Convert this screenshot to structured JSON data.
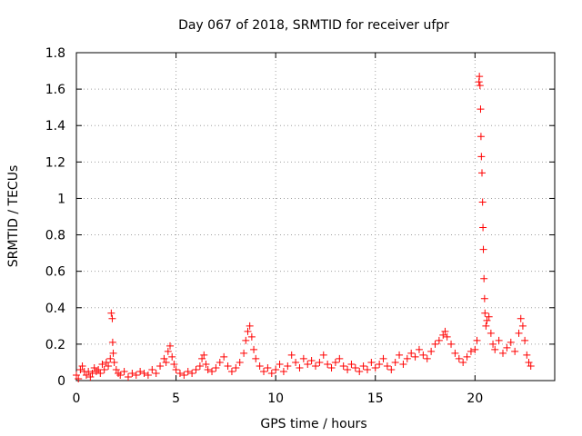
{
  "chart_data": {
    "type": "scatter",
    "title": "Day 067 of 2018, SRMTID for receiver ufpr",
    "xlabel": "GPS time / hours",
    "ylabel": "SRMTID / TECUs",
    "xlim": [
      0,
      24
    ],
    "ylim": [
      0,
      1.8
    ],
    "xticks": [
      "0",
      "5",
      "10",
      "15",
      "20"
    ],
    "yticks": [
      "0",
      "0.2",
      "0.4",
      "0.6",
      "0.8",
      "1",
      "1.2",
      "1.4",
      "1.6",
      "1.8"
    ],
    "grid": true,
    "marker": "+",
    "color": "#ff0000",
    "series": [
      {
        "name": "SRMTID",
        "points": [
          [
            0.0,
            0.03
          ],
          [
            0.1,
            0.01
          ],
          [
            0.2,
            0.06
          ],
          [
            0.3,
            0.08
          ],
          [
            0.4,
            0.05
          ],
          [
            0.5,
            0.03
          ],
          [
            0.6,
            0.05
          ],
          [
            0.7,
            0.02
          ],
          [
            0.8,
            0.04
          ],
          [
            0.9,
            0.07
          ],
          [
            1.0,
            0.05
          ],
          [
            1.1,
            0.06
          ],
          [
            1.2,
            0.04
          ],
          [
            1.3,
            0.09
          ],
          [
            1.4,
            0.06
          ],
          [
            1.5,
            0.1
          ],
          [
            1.6,
            0.08
          ],
          [
            1.7,
            0.12
          ],
          [
            1.75,
            0.37
          ],
          [
            1.8,
            0.34
          ],
          [
            1.82,
            0.21
          ],
          [
            1.85,
            0.15
          ],
          [
            1.9,
            0.1
          ],
          [
            2.0,
            0.06
          ],
          [
            2.1,
            0.04
          ],
          [
            2.2,
            0.03
          ],
          [
            2.4,
            0.05
          ],
          [
            2.6,
            0.02
          ],
          [
            2.8,
            0.04
          ],
          [
            3.0,
            0.03
          ],
          [
            3.2,
            0.05
          ],
          [
            3.4,
            0.04
          ],
          [
            3.6,
            0.03
          ],
          [
            3.8,
            0.06
          ],
          [
            4.0,
            0.04
          ],
          [
            4.2,
            0.08
          ],
          [
            4.4,
            0.12
          ],
          [
            4.5,
            0.1
          ],
          [
            4.6,
            0.16
          ],
          [
            4.7,
            0.19
          ],
          [
            4.8,
            0.13
          ],
          [
            4.9,
            0.09
          ],
          [
            5.0,
            0.06
          ],
          [
            5.2,
            0.04
          ],
          [
            5.4,
            0.03
          ],
          [
            5.6,
            0.05
          ],
          [
            5.8,
            0.04
          ],
          [
            6.0,
            0.06
          ],
          [
            6.2,
            0.08
          ],
          [
            6.3,
            0.12
          ],
          [
            6.4,
            0.14
          ],
          [
            6.5,
            0.09
          ],
          [
            6.6,
            0.06
          ],
          [
            6.8,
            0.05
          ],
          [
            7.0,
            0.07
          ],
          [
            7.2,
            0.1
          ],
          [
            7.4,
            0.13
          ],
          [
            7.6,
            0.08
          ],
          [
            7.8,
            0.05
          ],
          [
            8.0,
            0.07
          ],
          [
            8.2,
            0.1
          ],
          [
            8.4,
            0.15
          ],
          [
            8.5,
            0.22
          ],
          [
            8.6,
            0.27
          ],
          [
            8.7,
            0.3
          ],
          [
            8.8,
            0.24
          ],
          [
            8.9,
            0.17
          ],
          [
            9.0,
            0.12
          ],
          [
            9.2,
            0.08
          ],
          [
            9.4,
            0.05
          ],
          [
            9.6,
            0.07
          ],
          [
            9.8,
            0.04
          ],
          [
            10.0,
            0.06
          ],
          [
            10.2,
            0.09
          ],
          [
            10.4,
            0.05
          ],
          [
            10.6,
            0.08
          ],
          [
            10.8,
            0.14
          ],
          [
            11.0,
            0.1
          ],
          [
            11.2,
            0.07
          ],
          [
            11.4,
            0.12
          ],
          [
            11.6,
            0.09
          ],
          [
            11.8,
            0.11
          ],
          [
            12.0,
            0.08
          ],
          [
            12.2,
            0.1
          ],
          [
            12.4,
            0.14
          ],
          [
            12.6,
            0.09
          ],
          [
            12.8,
            0.07
          ],
          [
            13.0,
            0.1
          ],
          [
            13.2,
            0.12
          ],
          [
            13.4,
            0.08
          ],
          [
            13.6,
            0.06
          ],
          [
            13.8,
            0.09
          ],
          [
            14.0,
            0.07
          ],
          [
            14.2,
            0.05
          ],
          [
            14.4,
            0.08
          ],
          [
            14.6,
            0.06
          ],
          [
            14.8,
            0.1
          ],
          [
            15.0,
            0.07
          ],
          [
            15.2,
            0.09
          ],
          [
            15.4,
            0.12
          ],
          [
            15.6,
            0.08
          ],
          [
            15.8,
            0.06
          ],
          [
            16.0,
            0.1
          ],
          [
            16.2,
            0.14
          ],
          [
            16.4,
            0.09
          ],
          [
            16.6,
            0.12
          ],
          [
            16.8,
            0.15
          ],
          [
            17.0,
            0.13
          ],
          [
            17.2,
            0.17
          ],
          [
            17.4,
            0.14
          ],
          [
            17.6,
            0.12
          ],
          [
            17.8,
            0.16
          ],
          [
            18.0,
            0.2
          ],
          [
            18.2,
            0.22
          ],
          [
            18.4,
            0.25
          ],
          [
            18.5,
            0.27
          ],
          [
            18.6,
            0.24
          ],
          [
            18.8,
            0.2
          ],
          [
            19.0,
            0.15
          ],
          [
            19.2,
            0.12
          ],
          [
            19.4,
            0.1
          ],
          [
            19.6,
            0.13
          ],
          [
            19.8,
            0.16
          ],
          [
            20.0,
            0.17
          ],
          [
            20.1,
            0.22
          ],
          [
            20.2,
            1.64
          ],
          [
            20.22,
            1.67
          ],
          [
            20.25,
            1.62
          ],
          [
            20.28,
            1.49
          ],
          [
            20.3,
            1.34
          ],
          [
            20.32,
            1.23
          ],
          [
            20.35,
            1.14
          ],
          [
            20.38,
            0.98
          ],
          [
            20.4,
            0.84
          ],
          [
            20.42,
            0.72
          ],
          [
            20.45,
            0.56
          ],
          [
            20.48,
            0.45
          ],
          [
            20.5,
            0.37
          ],
          [
            20.55,
            0.3
          ],
          [
            20.6,
            0.33
          ],
          [
            20.7,
            0.35
          ],
          [
            20.8,
            0.26
          ],
          [
            20.9,
            0.2
          ],
          [
            21.0,
            0.17
          ],
          [
            21.2,
            0.22
          ],
          [
            21.4,
            0.15
          ],
          [
            21.6,
            0.18
          ],
          [
            21.8,
            0.21
          ],
          [
            22.0,
            0.16
          ],
          [
            22.2,
            0.26
          ],
          [
            22.3,
            0.34
          ],
          [
            22.4,
            0.3
          ],
          [
            22.5,
            0.22
          ],
          [
            22.6,
            0.14
          ],
          [
            22.7,
            0.1
          ],
          [
            22.8,
            0.08
          ]
        ]
      }
    ]
  }
}
